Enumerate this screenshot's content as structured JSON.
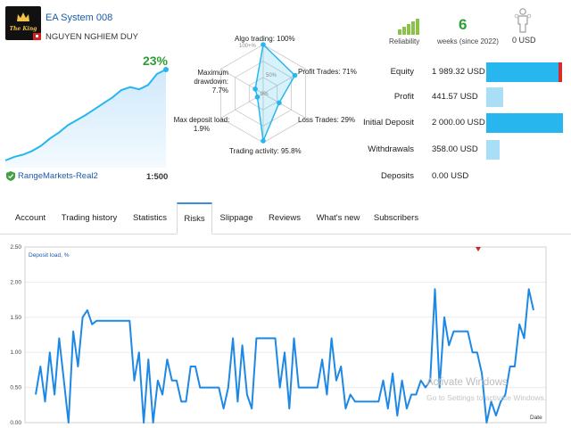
{
  "header": {
    "system_name": "EA System 008",
    "owner": "NGUYEN NGHIEM DUY",
    "logo_text": "The King"
  },
  "growth": {
    "value": "23%",
    "equity_curve": [
      0,
      5,
      8,
      13,
      20,
      30,
      38,
      48,
      55,
      62,
      70,
      78,
      86,
      96,
      100,
      97,
      103,
      118,
      124
    ]
  },
  "account": {
    "broker": "RangeMarkets-Real2",
    "leverage": "1:500"
  },
  "radar": {
    "labels": {
      "algo": "Algo trading: 100%",
      "profit_trades": "Profit Trades: 71%",
      "loss_trades": "Loss Trades: 29%",
      "activity": "Trading activity: 95.8%",
      "max_deposit_load": "Max deposit load:\n1.9%",
      "max_drawdown": "Maximum\ndrawdown: 7.7%"
    },
    "values": [
      100,
      71,
      29,
      95.8,
      1.9,
      7.7
    ],
    "rings": [
      "100+%",
      "50%",
      "0%"
    ]
  },
  "summary": {
    "reliability_label": "Reliability",
    "reliability_level": 5,
    "weeks_value": "6",
    "weeks_label": "weeks (since 2022)",
    "subscribers_value": "0 USD"
  },
  "stats": [
    {
      "label": "Equity",
      "value": "1 989.32 USD",
      "fraction": 0.99,
      "style": "dark",
      "marker": true
    },
    {
      "label": "Profit",
      "value": "441.57 USD",
      "fraction": 0.22,
      "style": "light",
      "marker": false
    },
    {
      "label": "Initial Deposit",
      "value": "2 000.00 USD",
      "fraction": 1.0,
      "style": "dark",
      "marker": false
    },
    {
      "label": "Withdrawals",
      "value": "358.00 USD",
      "fraction": 0.18,
      "style": "light",
      "marker": false
    },
    {
      "label": "Deposits",
      "value": "0.00 USD",
      "fraction": 0.0,
      "style": "light",
      "marker": false
    }
  ],
  "tabs": [
    {
      "label": "Account",
      "active": false
    },
    {
      "label": "Trading history",
      "active": false
    },
    {
      "label": "Statistics",
      "active": false
    },
    {
      "label": "Risks",
      "active": true
    },
    {
      "label": "Slippage",
      "active": false
    },
    {
      "label": "Reviews",
      "active": false
    },
    {
      "label": "What's new",
      "active": false
    },
    {
      "label": "Subscribers",
      "active": false
    }
  ],
  "chart_data": {
    "type": "line",
    "series": [
      {
        "name": "Deposit load, %",
        "values": [
          0.4,
          0.8,
          0.3,
          1.0,
          0.4,
          1.2,
          0.6,
          0.0,
          1.3,
          0.8,
          1.5,
          1.6,
          1.4,
          1.45,
          1.45,
          1.45,
          1.45,
          1.45,
          1.45,
          1.45,
          1.45,
          0.6,
          1.0,
          0.0,
          0.9,
          0.0,
          0.6,
          0.4,
          0.9,
          0.6,
          0.6,
          0.3,
          0.3,
          0.8,
          0.8,
          0.5,
          0.5,
          0.5,
          0.5,
          0.5,
          0.2,
          0.5,
          1.2,
          0.3,
          1.1,
          0.4,
          0.2,
          1.2,
          1.2,
          1.2,
          1.2,
          1.2,
          0.5,
          1.0,
          0.2,
          1.2,
          0.5,
          0.5,
          0.5,
          0.5,
          0.5,
          0.9,
          0.4,
          1.2,
          0.6,
          0.8,
          0.2,
          0.4,
          0.3,
          0.3,
          0.3,
          0.3,
          0.3,
          0.3,
          0.6,
          0.2,
          0.7,
          0.1,
          0.6,
          0.2,
          0.4,
          0.4,
          0.6,
          0.5,
          0.6,
          1.9,
          0.5,
          1.5,
          1.1,
          1.3,
          1.3,
          1.3,
          1.3,
          1.0,
          1.0,
          0.7,
          0.0,
          0.3,
          0.1,
          0.3,
          0.4,
          0.8,
          0.8,
          1.4,
          1.2,
          1.9,
          1.6
        ]
      }
    ],
    "yticks": [
      "0.00",
      "0.50",
      "1.00",
      "1.50",
      "2.00",
      "2.50"
    ],
    "ylim": [
      0,
      2.5
    ],
    "xlabel": "Date"
  },
  "watermark": {
    "line1": "Activate Windows",
    "line2": "Go to Settings to activate Windows."
  },
  "colors": {
    "accent": "#27b6ee",
    "growth_green": "#2e9e34",
    "link_blue": "#1a5ba8",
    "line_blue": "#1e88e5"
  }
}
